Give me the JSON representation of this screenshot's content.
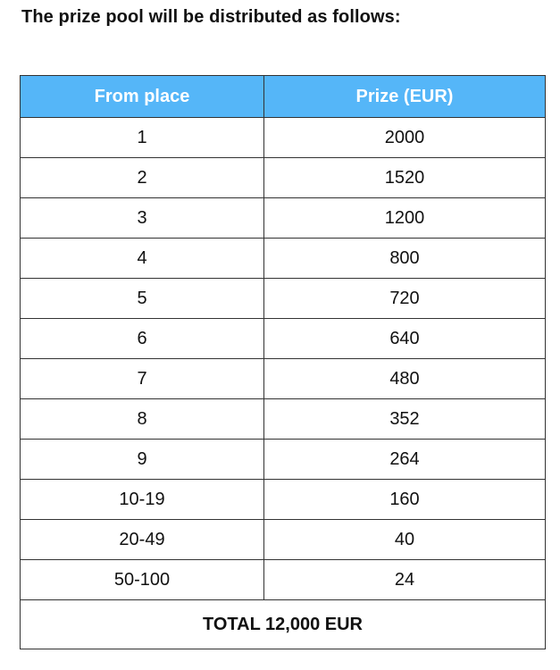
{
  "title": "The prize pool will be distributed as follows:",
  "table": {
    "header_color": "#55b6f8",
    "headers": [
      "From place",
      "Prize (EUR)"
    ],
    "rows": [
      [
        "1",
        "2000"
      ],
      [
        "2",
        "1520"
      ],
      [
        "3",
        "1200"
      ],
      [
        "4",
        "800"
      ],
      [
        "5",
        "720"
      ],
      [
        "6",
        "640"
      ],
      [
        "7",
        "480"
      ],
      [
        "8",
        "352"
      ],
      [
        "9",
        "264"
      ],
      [
        "10-19",
        "160"
      ],
      [
        "20-49",
        "40"
      ],
      [
        "50-100",
        "24"
      ]
    ],
    "total": "TOTAL 12,000 EUR"
  }
}
